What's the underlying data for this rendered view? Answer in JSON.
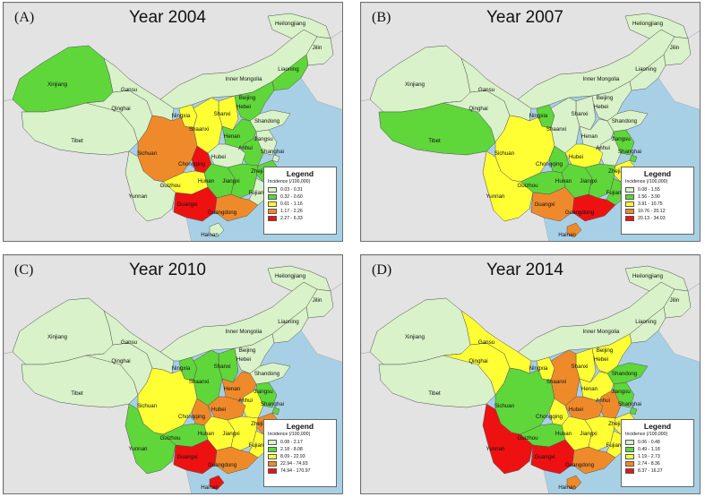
{
  "panels": [
    {
      "letter": "(A)",
      "title": "Year 2004",
      "legend": {
        "title": "Legend",
        "subtitle": "Incidence (/100,000)",
        "classes": [
          {
            "label": "0.03 - 0.31",
            "color": "#d9f2c9"
          },
          {
            "label": "0.32 - 0.60",
            "color": "#5fd63a"
          },
          {
            "label": "0.61 - 1.16",
            "color": "#ffff33"
          },
          {
            "label": "1.17 - 2.26",
            "color": "#ef8a2b"
          },
          {
            "label": "2.27 - 6.33",
            "color": "#ee1111"
          }
        ]
      },
      "province_class": {
        "Xinjiang": 2,
        "Tibet": 1,
        "Qinghai": 1,
        "Gansu": 1,
        "Inner Mongolia": 1,
        "Heilongjiang": 1,
        "Jilin": 1,
        "Liaoning": 2,
        "Beijing": 5,
        "Hebei": 2,
        "Shanxi": 3,
        "Shandong": 1,
        "Ningxia": 3,
        "Shaanxi": 3,
        "Henan": 2,
        "Jiangsu": 1,
        "Anhui": 2,
        "Shanghai": 1,
        "Hubei": 1,
        "Sichuan": 4,
        "Chongqing": 5,
        "Zhejiang": 2,
        "Hunan": 2,
        "Jiangxi": 2,
        "Guizhou": 3,
        "Fujian": 1,
        "Yunnan": 1,
        "Guangxi": 5,
        "Guangdong": 4,
        "Hainan": 1,
        "Taiwan": 0
      }
    },
    {
      "letter": "(B)",
      "title": "Year 2007",
      "legend": {
        "title": "Legend",
        "subtitle": "Incidence (/100,000)",
        "classes": [
          {
            "label": "0.08 - 1.55",
            "color": "#d9f2c9"
          },
          {
            "label": "1.56 - 3.90",
            "color": "#5fd63a"
          },
          {
            "label": "3.91 - 10.75",
            "color": "#ffff33"
          },
          {
            "label": "10.76 - 20.12",
            "color": "#ef8a2b"
          },
          {
            "label": "20.13 - 34.03",
            "color": "#ee1111"
          }
        ]
      },
      "province_class": {
        "Xinjiang": 1,
        "Tibet": 2,
        "Qinghai": 1,
        "Gansu": 1,
        "Inner Mongolia": 1,
        "Heilongjiang": 1,
        "Jilin": 1,
        "Liaoning": 1,
        "Beijing": 1,
        "Hebei": 1,
        "Shanxi": 1,
        "Shandong": 1,
        "Ningxia": 2,
        "Shaanxi": 1,
        "Henan": 1,
        "Jiangsu": 2,
        "Anhui": 1,
        "Shanghai": 2,
        "Hubei": 3,
        "Sichuan": 3,
        "Chongqing": 2,
        "Zhejiang": 3,
        "Hunan": 2,
        "Jiangxi": 2,
        "Guizhou": 2,
        "Fujian": 2,
        "Yunnan": 3,
        "Guangxi": 4,
        "Guangdong": 5,
        "Hainan": 4,
        "Taiwan": 0
      }
    },
    {
      "letter": "(C)",
      "title": "Year 2010",
      "legend": {
        "title": "Legend",
        "subtitle": "Incidence (/100,000)",
        "classes": [
          {
            "label": "0.08 - 2.17",
            "color": "#d9f2c9"
          },
          {
            "label": "2.18 - 8.08",
            "color": "#5fd63a"
          },
          {
            "label": "8.09 - 22.93",
            "color": "#ffff33"
          },
          {
            "label": "22.94 - 74.93",
            "color": "#ef8a2b"
          },
          {
            "label": "74.94 - 170.97",
            "color": "#ee1111"
          }
        ]
      },
      "province_class": {
        "Xinjiang": 1,
        "Tibet": 1,
        "Qinghai": 1,
        "Gansu": 1,
        "Inner Mongolia": 1,
        "Heilongjiang": 1,
        "Jilin": 1,
        "Liaoning": 1,
        "Beijing": 1,
        "Hebei": 1,
        "Shanxi": 2,
        "Shandong": 1,
        "Ningxia": 2,
        "Shaanxi": 2,
        "Henan": 4,
        "Jiangsu": 2,
        "Anhui": 3,
        "Shanghai": 2,
        "Hubei": 4,
        "Sichuan": 3,
        "Chongqing": 4,
        "Zhejiang": 4,
        "Hunan": 3,
        "Jiangxi": 3,
        "Guizhou": 2,
        "Fujian": 3,
        "Yunnan": 2,
        "Guangxi": 5,
        "Guangdong": 4,
        "Hainan": 5,
        "Taiwan": 0
      }
    },
    {
      "letter": "(D)",
      "title": "Year 2014",
      "legend": {
        "title": "Legend",
        "subtitle": "Incidence (/100,000)",
        "classes": [
          {
            "label": "0.06 - 0.48",
            "color": "#d9f2c9"
          },
          {
            "label": "0.49 - 1.18",
            "color": "#5fd63a"
          },
          {
            "label": "1.19 - 2.73",
            "color": "#ffff33"
          },
          {
            "label": "2.74 - 8.36",
            "color": "#ef8a2b"
          },
          {
            "label": "8.37 - 16.27",
            "color": "#ee1111"
          }
        ]
      },
      "province_class": {
        "Xinjiang": 1,
        "Tibet": 1,
        "Qinghai": 3,
        "Gansu": 3,
        "Inner Mongolia": 1,
        "Heilongjiang": 1,
        "Jilin": 1,
        "Liaoning": 1,
        "Beijing": 3,
        "Hebei": 3,
        "Shanxi": 3,
        "Shandong": 2,
        "Ningxia": 3,
        "Shaanxi": 4,
        "Henan": 3,
        "Jiangsu": 2,
        "Anhui": 4,
        "Shanghai": 2,
        "Hubei": 4,
        "Sichuan": 2,
        "Chongqing": 3,
        "Zhejiang": 3,
        "Hunan": 3,
        "Jiangxi": 3,
        "Guizhou": 2,
        "Fujian": 3,
        "Yunnan": 5,
        "Guangxi": 5,
        "Guangdong": 4,
        "Hainan": 4,
        "Taiwan": 0
      }
    }
  ],
  "province_names": {
    "Xinjiang": "Xinjiang",
    "Tibet": "Tibet",
    "Qinghai": "Qinghai",
    "Gansu": "Gansu",
    "Inner Mongolia": "Inner Mongolia",
    "Heilongjiang": "Heilongjiang",
    "Jilin": "Jilin",
    "Liaoning": "Liaoning",
    "Beijing": "Beijing",
    "Hebei": "Hebei",
    "Shanxi": "Shanxi",
    "Shandong": "Shandong",
    "Ningxia": "Ningxia",
    "Shaanxi": "Shaanxi",
    "Henan": "Henan",
    "Jiangsu": "Jiangsu",
    "Anhui": "Anhui",
    "Shanghai": "Shanghai",
    "Hubei": "Hubei",
    "Sichuan": "Sichuan",
    "Chongqing": "Chongqing",
    "Zhejiang": "Zhejiang",
    "Hunan": "Hunan",
    "Jiangxi": "Jiangxi",
    "Guizhou": "Guizhou",
    "Fujian": "Fujian",
    "Yunnan": "Yunnan",
    "Guangxi": "Guangxi",
    "Guangdong": "Guangdong",
    "Hainan": "Hainan"
  },
  "colors": {
    "water": "#a7d0e6",
    "land_outside": "#e3e3e3",
    "no_data": "#d9f2c9",
    "border": "#555555"
  }
}
